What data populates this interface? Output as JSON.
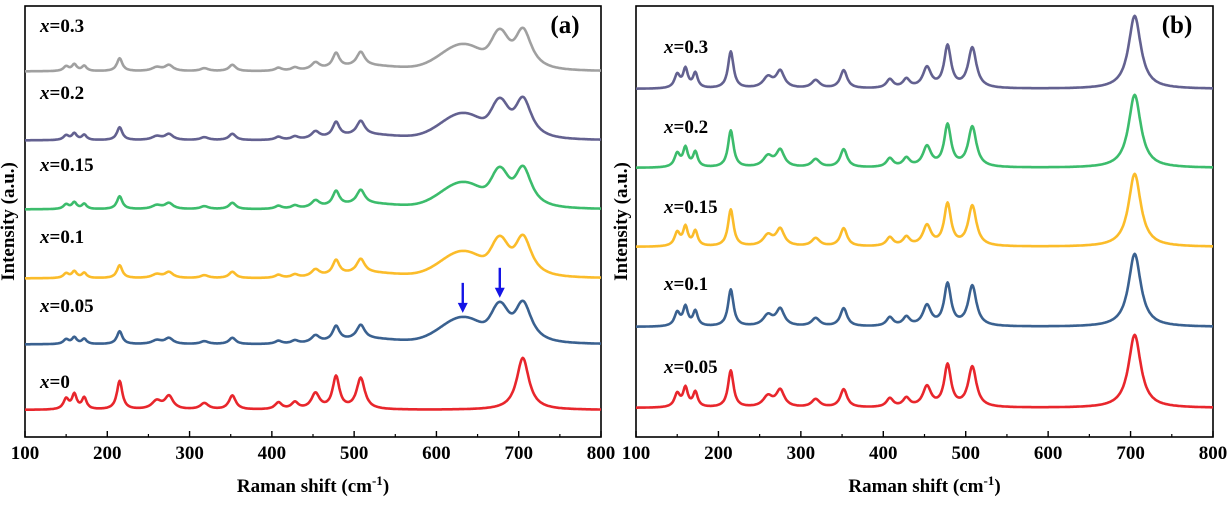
{
  "chart_data": [
    {
      "panel": "(a)",
      "type": "line",
      "xlabel": "Raman shift (cm",
      "xlabel_superscript": "-1",
      "xlabel_close": ")",
      "ylabel": "Intensity (a.u.)",
      "xlim": [
        100,
        800
      ],
      "xticks": [
        100,
        200,
        300,
        400,
        500,
        600,
        700,
        800
      ],
      "yticks_shown": false,
      "legend": "inline labels at left of each curve",
      "arrows": [
        {
          "x": 632,
          "series": "x=0.05",
          "color": "#1414e6"
        },
        {
          "x": 677,
          "series": "x=0.05",
          "color": "#1414e6"
        }
      ],
      "series": [
        {
          "name": "x=0",
          "prefix": "x",
          "value_text": "=0",
          "color": "#e8262c",
          "offset": 0,
          "broad_band": false
        },
        {
          "name": "x=0.05",
          "prefix": "x",
          "value_text": "=0.05",
          "color": "#3a6190",
          "offset": 1,
          "broad_band": true
        },
        {
          "name": "x=0.1",
          "prefix": "x",
          "value_text": "=0.1",
          "color": "#fbbc2a",
          "offset": 2,
          "broad_band": true
        },
        {
          "name": "x=0.15",
          "prefix": "x",
          "value_text": "=0.15",
          "color": "#3cbc6c",
          "offset": 3,
          "broad_band": true
        },
        {
          "name": "x=0.2",
          "prefix": "x",
          "value_text": "=0.2",
          "color": "#636190",
          "offset": 4,
          "broad_band": true
        },
        {
          "name": "x=0.3",
          "prefix": "x",
          "value_text": "=0.3",
          "color": "#a0a0a0",
          "offset": 5,
          "broad_band": true
        }
      ],
      "peaks_cm-1": [
        150,
        160,
        172,
        215,
        260,
        275,
        318,
        352,
        408,
        428,
        453,
        478,
        508,
        705
      ]
    },
    {
      "panel": "(b)",
      "type": "line",
      "xlabel": "Raman shift (cm",
      "xlabel_superscript": "-1",
      "xlabel_close": ")",
      "ylabel": "Intensity (a.u.)",
      "xlim": [
        100,
        800
      ],
      "xticks": [
        100,
        200,
        300,
        400,
        500,
        600,
        700,
        800
      ],
      "yticks_shown": false,
      "legend": "inline labels at left of each curve",
      "series": [
        {
          "name": "x=0.05",
          "prefix": "x",
          "value_text": "=0.05",
          "color": "#e8262c",
          "offset": 0
        },
        {
          "name": "x=0.1",
          "prefix": "x",
          "value_text": "=0.1",
          "color": "#3a6190",
          "offset": 1
        },
        {
          "name": "x=0.15",
          "prefix": "x",
          "value_text": "=0.15",
          "color": "#fbbc2a",
          "offset": 2
        },
        {
          "name": "x=0.2",
          "prefix": "x",
          "value_text": "=0.2",
          "color": "#3cbc6c",
          "offset": 3
        },
        {
          "name": "x=0.3",
          "prefix": "x",
          "value_text": "=0.3",
          "color": "#636190",
          "offset": 4
        }
      ],
      "peaks_cm-1": [
        150,
        160,
        172,
        215,
        260,
        275,
        318,
        352,
        408,
        428,
        453,
        478,
        508,
        705
      ]
    }
  ]
}
